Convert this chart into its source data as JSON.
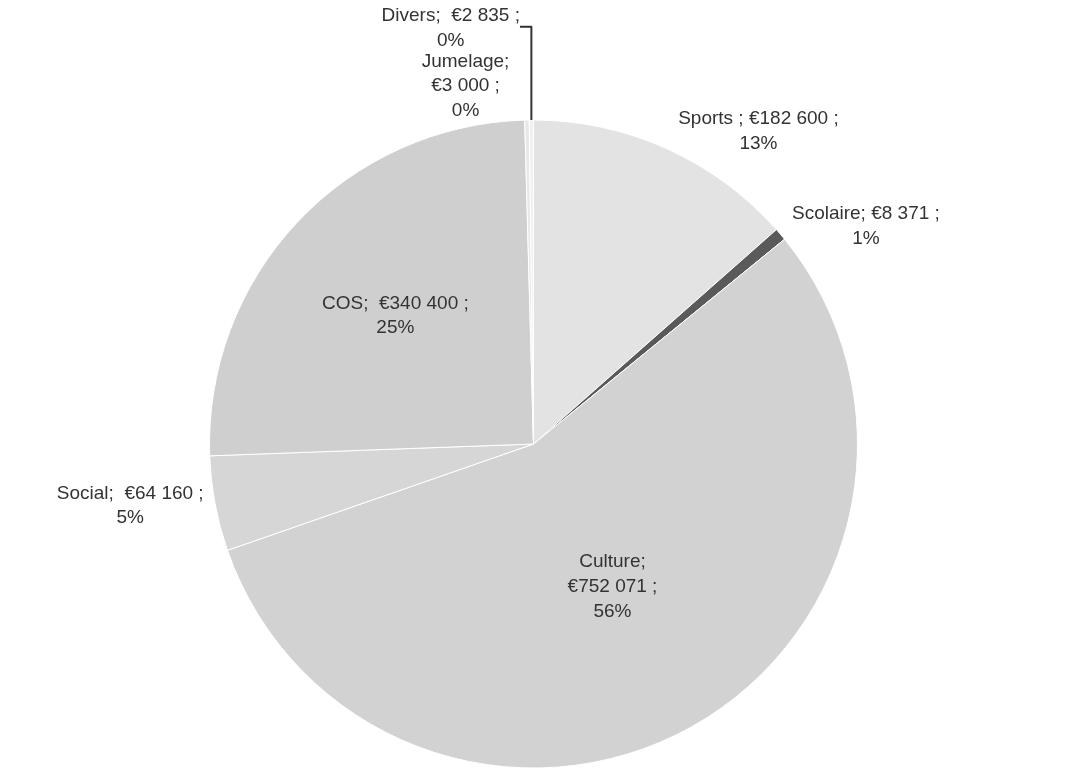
{
  "chart_data": {
    "type": "pie",
    "categories": [
      "Sports",
      "Scolaire",
      "Culture",
      "Social",
      "COS",
      "Jumelage",
      "Divers"
    ],
    "values": [
      182600,
      8371,
      752071,
      64160,
      340400,
      3000,
      2835
    ],
    "value_labels": [
      " ; €182 600 ;\n13%",
      "; €8 371 ;\n1%",
      ";\n€752 071 ;\n56%",
      ";  €64 160 ;\n5%",
      ";  €340 400 ;\n25%",
      ";\n€3 000 ;\n0%",
      ";  €2 835 ;\n0%"
    ],
    "colors": [
      "#e3e3e3",
      "#5a5a5a",
      "#d2d2d2",
      "#d6d6d6",
      "#cfcfcf",
      "#e8e8e8",
      "#f0f0f0"
    ],
    "legend": false
  }
}
